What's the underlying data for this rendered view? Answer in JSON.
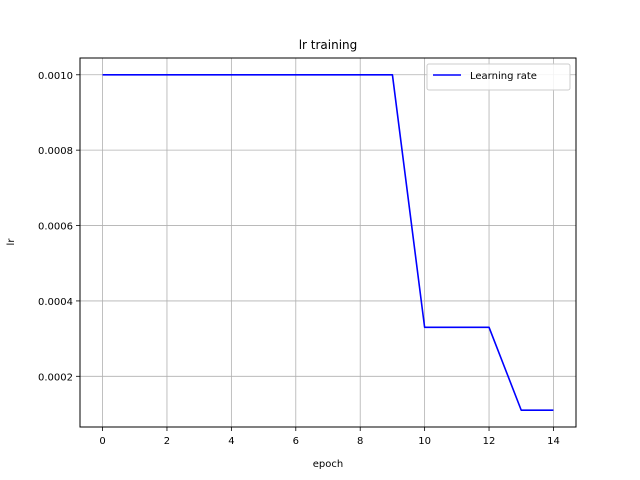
{
  "chart_data": {
    "type": "line",
    "title": "lr training",
    "xlabel": "epoch",
    "ylabel": "lr",
    "xlim": [
      -0.7,
      14.7
    ],
    "ylim": [
      6.55e-05,
      0.0010445
    ],
    "xticks": [
      0,
      2,
      4,
      6,
      8,
      10,
      12,
      14
    ],
    "xtick_labels": [
      "0",
      "2",
      "4",
      "6",
      "8",
      "10",
      "12",
      "14"
    ],
    "yticks": [
      0.0002,
      0.0004,
      0.0006,
      0.0008,
      0.001
    ],
    "ytick_labels": [
      "0.0002",
      "0.0004",
      "0.0006",
      "0.0008",
      "0.0010"
    ],
    "grid": true,
    "legend_position": "top-right",
    "series": [
      {
        "name": "Learning rate",
        "color": "#0000ff",
        "x": [
          0,
          1,
          2,
          3,
          4,
          5,
          6,
          7,
          8,
          9,
          10,
          11,
          12,
          13,
          14
        ],
        "y": [
          0.001,
          0.001,
          0.001,
          0.001,
          0.001,
          0.001,
          0.001,
          0.001,
          0.001,
          0.001,
          0.00033,
          0.00033,
          0.00033,
          0.00011,
          0.00011
        ]
      }
    ]
  }
}
